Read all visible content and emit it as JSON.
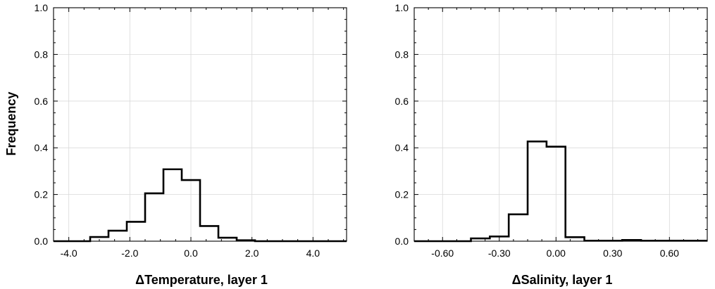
{
  "figure": {
    "ylabel": "Frequency"
  },
  "chart_data": [
    {
      "type": "histogram",
      "xlabel": "ΔTemperature, layer 1",
      "ylabel": "Frequency",
      "xlim": [
        -4.5,
        5.1
      ],
      "ylim": [
        0,
        1
      ],
      "xticks": [
        -4.0,
        -2.0,
        0.0,
        2.0,
        4.0
      ],
      "xtick_labels": [
        "-4.0",
        "-2.0",
        "0.0",
        "2.0",
        "4.0"
      ],
      "yticks": [
        0,
        0.2,
        0.4,
        0.6,
        0.8,
        1.0
      ],
      "ytick_labels": [
        "0.0",
        "0.2",
        "0.4",
        "0.6",
        "0.8",
        "1.0"
      ],
      "bin_edges": [
        -4.5,
        -3.3,
        -2.7,
        -2.1,
        -1.5,
        -0.9,
        -0.3,
        0.3,
        0.9,
        1.5,
        2.1,
        5.1
      ],
      "values": [
        0.0,
        0.018,
        0.045,
        0.083,
        0.205,
        0.308,
        0.262,
        0.065,
        0.015,
        0.004,
        0.0
      ],
      "grid": true
    },
    {
      "type": "histogram",
      "xlabel": "ΔSalinity, layer 1",
      "ylabel": "Frequency",
      "xlim": [
        -0.75,
        0.8
      ],
      "ylim": [
        0,
        1
      ],
      "xticks": [
        -0.6,
        -0.3,
        0.0,
        0.3,
        0.6
      ],
      "xtick_labels": [
        "-0.60",
        "-0.30",
        "0.00",
        "0.30",
        "0.60"
      ],
      "yticks": [
        0,
        0.2,
        0.4,
        0.6,
        0.8,
        1.0
      ],
      "ytick_labels": [
        "0.0",
        "0.2",
        "0.4",
        "0.6",
        "0.8",
        "1.0"
      ],
      "bin_edges": [
        -0.75,
        -0.45,
        -0.35,
        -0.25,
        -0.15,
        -0.05,
        0.05,
        0.15,
        0.25,
        0.35,
        0.45,
        0.8
      ],
      "values": [
        0.0,
        0.012,
        0.02,
        0.115,
        0.427,
        0.405,
        0.017,
        0.002,
        0.002,
        0.005,
        0.002
      ],
      "grid": true
    }
  ]
}
